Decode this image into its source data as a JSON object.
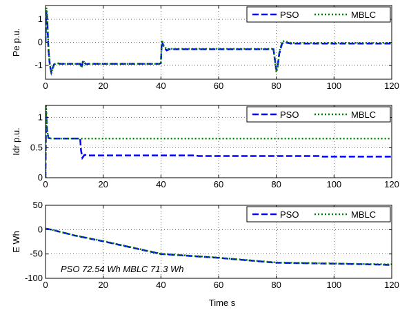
{
  "chart_data": [
    {
      "type": "line",
      "ylabel": "Pe p.u.",
      "xlim": [
        0,
        120
      ],
      "ylim": [
        -1.6,
        1.6
      ],
      "yticks": [
        -1,
        0,
        1
      ],
      "xticks": [
        0,
        20,
        40,
        60,
        80,
        100,
        120
      ],
      "grid": "dotted",
      "legend_position": "top-right",
      "series": [
        {
          "name": "PSO",
          "color": "#0000ff",
          "style": "dashed",
          "x": [
            0,
            0.3,
            0.6,
            1,
            1.5,
            2,
            2.5,
            3,
            4,
            5,
            10,
            12,
            12.5,
            13,
            14,
            15,
            20,
            39.5,
            40,
            40.3,
            41,
            42,
            43,
            45,
            52,
            53,
            54,
            55,
            60,
            79,
            80,
            80.5,
            81,
            82,
            83,
            85,
            95,
            96,
            97,
            98,
            100,
            120
          ],
          "y": [
            0,
            1.4,
            1.0,
            -0.3,
            -1.0,
            -1.3,
            -1.1,
            -0.95,
            -0.9,
            -0.93,
            -0.93,
            -0.93,
            -1.1,
            -0.8,
            -0.95,
            -0.93,
            -0.93,
            -0.93,
            -0.9,
            0.05,
            -0.2,
            -0.35,
            -0.3,
            -0.3,
            -0.3,
            -0.3,
            -0.3,
            -0.3,
            -0.3,
            -0.3,
            -1.2,
            -1.0,
            -0.5,
            -0.05,
            0.0,
            -0.05,
            -0.05,
            -0.05,
            -0.05,
            -0.05,
            -0.05,
            -0.05
          ]
        },
        {
          "name": "MBLC",
          "color": "#008000",
          "style": "dotted",
          "x": [
            0,
            0.3,
            0.6,
            1,
            1.5,
            2,
            2.5,
            3,
            4,
            5,
            10,
            12,
            12.5,
            13,
            14,
            15,
            20,
            39.5,
            40,
            40.3,
            41,
            42,
            43,
            45,
            52,
            53,
            54,
            55,
            60,
            79,
            80,
            80.5,
            81,
            82,
            83,
            85,
            95,
            96,
            97,
            98,
            100,
            120
          ],
          "y": [
            0,
            1.5,
            1.1,
            -0.2,
            -0.95,
            -1.35,
            -1.15,
            -0.95,
            -0.9,
            -0.93,
            -0.93,
            -0.93,
            -1.1,
            -0.8,
            -0.95,
            -0.93,
            -0.93,
            -0.93,
            -0.9,
            0.1,
            -0.15,
            -0.3,
            -0.28,
            -0.28,
            -0.28,
            -0.28,
            -0.28,
            -0.28,
            -0.28,
            -0.28,
            -1.3,
            -1.05,
            -0.45,
            0.05,
            0.05,
            -0.02,
            -0.02,
            -0.02,
            -0.02,
            -0.02,
            -0.02,
            -0.02
          ]
        }
      ]
    },
    {
      "type": "line",
      "ylabel": "Idr p.u.",
      "xlim": [
        0,
        120
      ],
      "ylim": [
        0,
        1.2
      ],
      "yticks": [
        0,
        0.5,
        1
      ],
      "xticks": [
        0,
        20,
        40,
        60,
        80,
        100,
        120
      ],
      "grid": "dotted",
      "legend_position": "top-right",
      "series": [
        {
          "name": "PSO",
          "color": "#0000ff",
          "style": "dashed",
          "x": [
            0,
            0.2,
            0.5,
            1,
            2,
            5,
            12,
            12.3,
            12.8,
            13.5,
            15,
            20,
            40,
            52,
            53,
            54,
            60,
            80,
            95,
            96,
            97,
            100,
            120
          ],
          "y": [
            0,
            1.1,
            0.8,
            0.66,
            0.65,
            0.65,
            0.65,
            0.45,
            0.33,
            0.38,
            0.37,
            0.37,
            0.37,
            0.37,
            0.36,
            0.36,
            0.36,
            0.36,
            0.36,
            0.35,
            0.35,
            0.35,
            0.35
          ]
        },
        {
          "name": "MBLC",
          "color": "#008000",
          "style": "dotted",
          "x": [
            0,
            0.2,
            0.5,
            1,
            2,
            5,
            12,
            20,
            40,
            60,
            80,
            100,
            120
          ],
          "y": [
            0,
            1.2,
            0.8,
            0.66,
            0.65,
            0.65,
            0.65,
            0.65,
            0.65,
            0.65,
            0.65,
            0.65,
            0.65
          ]
        }
      ]
    },
    {
      "type": "line",
      "ylabel": "E Wh",
      "xlabel": "Time s",
      "xlim": [
        0,
        120
      ],
      "ylim": [
        -100,
        50
      ],
      "yticks": [
        -100,
        -50,
        0,
        50
      ],
      "xticks": [
        0,
        20,
        40,
        60,
        80,
        100,
        120
      ],
      "grid": "dotted",
      "legend_position": "top-right",
      "annotation": "PSO 72.54 Wh MBLC 71.3 Wh",
      "series": [
        {
          "name": "PSO",
          "color": "#0000ff",
          "style": "dashed",
          "x": [
            0,
            2,
            10,
            20,
            30,
            40,
            50,
            60,
            70,
            80,
            90,
            100,
            110,
            120
          ],
          "y": [
            2,
            0,
            -12,
            -24,
            -37,
            -50,
            -54,
            -58,
            -63,
            -68,
            -69,
            -70,
            -71,
            -72.5
          ]
        },
        {
          "name": "MBLC",
          "color": "#008000",
          "style": "dotted",
          "x": [
            0,
            2,
            10,
            20,
            30,
            40,
            50,
            60,
            70,
            80,
            90,
            100,
            110,
            120
          ],
          "y": [
            2,
            0,
            -11.5,
            -23.5,
            -36.5,
            -49.5,
            -53.5,
            -57.5,
            -62.5,
            -67.5,
            -68.5,
            -69.5,
            -70.5,
            -71.3
          ]
        }
      ]
    }
  ]
}
